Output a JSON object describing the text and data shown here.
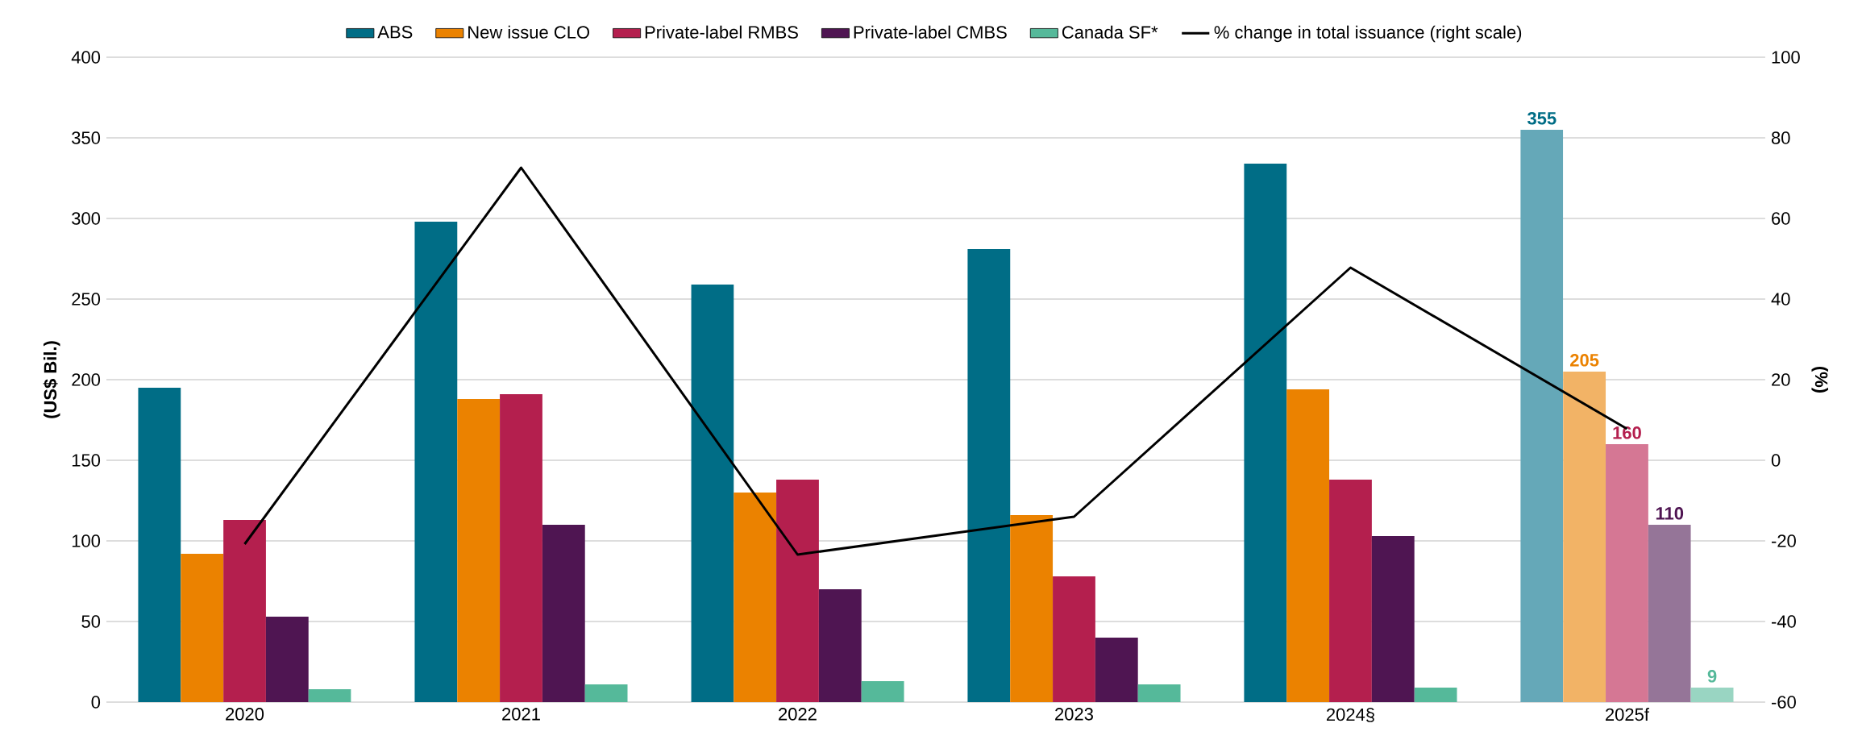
{
  "chart_data": {
    "type": "bar",
    "categories": [
      "2020",
      "2021",
      "2022",
      "2023",
      "2024§",
      "2025f"
    ],
    "ylabel": "(US$ Bil.)",
    "y2label": "(%)",
    "ylim": [
      0,
      400
    ],
    "yticks": [
      0,
      50,
      100,
      150,
      200,
      250,
      300,
      350,
      400
    ],
    "y2lim": [
      -60,
      100
    ],
    "y2ticks": [
      -60,
      -40,
      -20,
      0,
      20,
      40,
      60,
      80,
      100
    ],
    "grid": "y",
    "legend": "top",
    "series": [
      {
        "name": "ABS",
        "color": "#006d86",
        "colors": [
          "#006d86",
          "#006d86",
          "#006d86",
          "#006d86",
          "#006d86",
          "#65a8b8"
        ],
        "values": [
          195,
          298,
          259,
          281,
          334,
          355
        ],
        "value_labels": [
          null,
          null,
          null,
          null,
          null,
          "355"
        ]
      },
      {
        "name": "New issue CLO",
        "color": "#eb8200",
        "colors": [
          "#eb8200",
          "#eb8200",
          "#eb8200",
          "#eb8200",
          "#eb8200",
          "#f2b366"
        ],
        "values": [
          92,
          188,
          130,
          116,
          194,
          205
        ],
        "value_labels": [
          null,
          null,
          null,
          null,
          null,
          "205"
        ]
      },
      {
        "name": "Private-label RMBS",
        "color": "#b41f4e",
        "colors": [
          "#b41f4e",
          "#b41f4e",
          "#b41f4e",
          "#b41f4e",
          "#b41f4e",
          "#d57794"
        ],
        "values": [
          113,
          191,
          138,
          78,
          138,
          160
        ],
        "value_labels": [
          null,
          null,
          null,
          null,
          null,
          "160"
        ]
      },
      {
        "name": "Private-label CMBS",
        "color": "#4f1552",
        "colors": [
          "#4f1552",
          "#4f1552",
          "#4f1552",
          "#4f1552",
          "#4f1552",
          "#957598"
        ],
        "values": [
          53,
          110,
          70,
          40,
          103,
          110
        ],
        "value_labels": [
          null,
          null,
          null,
          null,
          null,
          "110"
        ]
      },
      {
        "name": "Canada SF*",
        "color": "#55b99a",
        "colors": [
          "#55b99a",
          "#55b99a",
          "#55b99a",
          "#55b99a",
          "#55b99a",
          "#99d5c2"
        ],
        "values": [
          8,
          11,
          13,
          11,
          9,
          9
        ],
        "value_labels": [
          null,
          null,
          null,
          null,
          null,
          "9"
        ]
      },
      {
        "name": "% change in total issuance (right scale)",
        "type": "line",
        "axis": "y2",
        "color": "#000000",
        "values": [
          -20.8,
          72.6,
          -23.4,
          -14,
          47.8,
          7.8
        ]
      }
    ]
  }
}
